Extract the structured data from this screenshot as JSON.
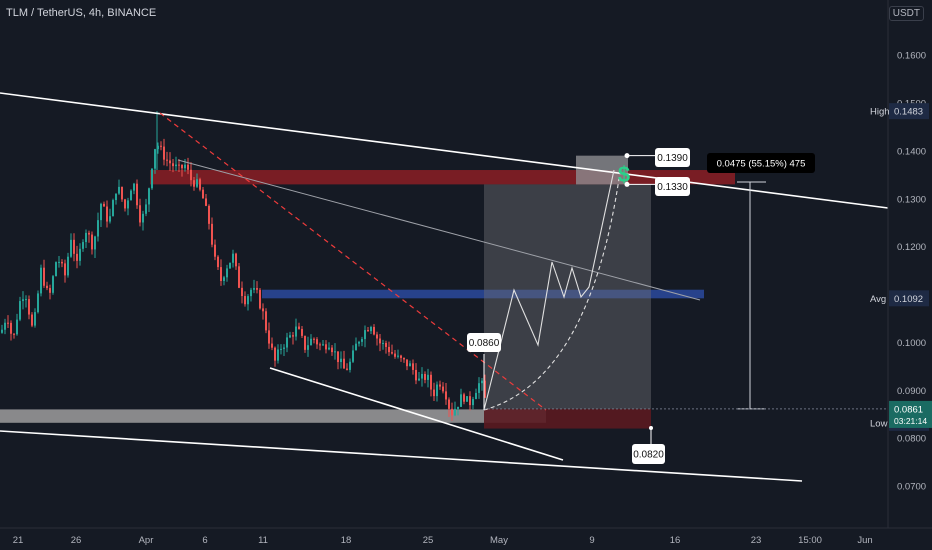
{
  "header": {
    "title": "TLM / TetherUS, 4h, BINANCE",
    "currency": "USDT"
  },
  "colors": {
    "background": "#151a24",
    "up": "#26a69a",
    "down": "#ef5350",
    "resistance_zone": "#8b1e24",
    "support_zone": "#9e9e9e",
    "mid_zone": "#2a4a9e",
    "target_zone": "#6b6b6b",
    "stop_zone": "#5a1a20"
  },
  "chart_data": {
    "type": "candlestick",
    "title": "TLM / TetherUS, 4h, BINANCE",
    "ylim": [
      0.065,
      0.165
    ],
    "y_ticks": [
      0.07,
      0.08,
      0.09,
      0.1,
      0.11,
      0.12,
      0.13,
      0.14,
      0.15,
      0.16
    ],
    "y_tick_labels": [
      "0.0700",
      "0.0800",
      "0.0900",
      "0.1000",
      "0.1100",
      "0.1200",
      "0.1300",
      "0.1400",
      "0.1500",
      "0.1600"
    ],
    "x_tick_labels": [
      "21",
      "26",
      "Apr",
      "6",
      "11",
      "18",
      "25",
      "May",
      "9",
      "16",
      "23",
      "15:00",
      "Jun"
    ],
    "price_labels": {
      "high": {
        "label": "High",
        "value": "0.1483"
      },
      "avg": {
        "label": "Avg",
        "value": "0.1092"
      },
      "current": {
        "value": "0.0861",
        "countdown": "03:21:14"
      },
      "low": {
        "label": "Low",
        "value": "0.0832"
      }
    },
    "annotations": {
      "entry": "0.0860",
      "target_top": "0.1390",
      "target_bottom": "0.1330",
      "stop": "0.0820",
      "measure": "0.0475 (55.15%) 475"
    },
    "price_path": [
      [
        0,
        0.102
      ],
      [
        6,
        0.106
      ],
      [
        12,
        0.1
      ],
      [
        18,
        0.108
      ],
      [
        24,
        0.111
      ],
      [
        32,
        0.102
      ],
      [
        40,
        0.115
      ],
      [
        48,
        0.109
      ],
      [
        56,
        0.118
      ],
      [
        64,
        0.114
      ],
      [
        70,
        0.122
      ],
      [
        76,
        0.116
      ],
      [
        84,
        0.124
      ],
      [
        92,
        0.12
      ],
      [
        100,
        0.129
      ],
      [
        108,
        0.125
      ],
      [
        116,
        0.133
      ],
      [
        124,
        0.128
      ],
      [
        132,
        0.134
      ],
      [
        140,
        0.125
      ],
      [
        146,
        0.129
      ],
      [
        150,
        0.136
      ],
      [
        155,
        0.142
      ],
      [
        160,
        0.14
      ],
      [
        166,
        0.138
      ],
      [
        172,
        0.137
      ],
      [
        178,
        0.136
      ],
      [
        184,
        0.137
      ],
      [
        190,
        0.134
      ],
      [
        196,
        0.133
      ],
      [
        202,
        0.13
      ],
      [
        208,
        0.125
      ],
      [
        214,
        0.117
      ],
      [
        220,
        0.113
      ],
      [
        226,
        0.116
      ],
      [
        232,
        0.118
      ],
      [
        238,
        0.112
      ],
      [
        244,
        0.109
      ],
      [
        250,
        0.111
      ],
      [
        256,
        0.11
      ],
      [
        262,
        0.106
      ],
      [
        266,
        0.102
      ],
      [
        270,
        0.099
      ],
      [
        274,
        0.096
      ],
      [
        280,
        0.099
      ],
      [
        288,
        0.101
      ],
      [
        296,
        0.103
      ],
      [
        304,
        0.099
      ],
      [
        312,
        0.101
      ],
      [
        320,
        0.099
      ],
      [
        328,
        0.1
      ],
      [
        336,
        0.097
      ],
      [
        344,
        0.094
      ],
      [
        350,
        0.096
      ],
      [
        356,
        0.1
      ],
      [
        362,
        0.102
      ],
      [
        370,
        0.104
      ],
      [
        378,
        0.1
      ],
      [
        386,
        0.099
      ],
      [
        394,
        0.097
      ],
      [
        402,
        0.096
      ],
      [
        410,
        0.095
      ],
      [
        418,
        0.092
      ],
      [
        426,
        0.093
      ],
      [
        432,
        0.089
      ],
      [
        438,
        0.092
      ],
      [
        444,
        0.09
      ],
      [
        450,
        0.085
      ],
      [
        456,
        0.087
      ],
      [
        462,
        0.089
      ],
      [
        468,
        0.087
      ],
      [
        474,
        0.09
      ],
      [
        480,
        0.092
      ],
      [
        486,
        0.0861
      ]
    ]
  }
}
